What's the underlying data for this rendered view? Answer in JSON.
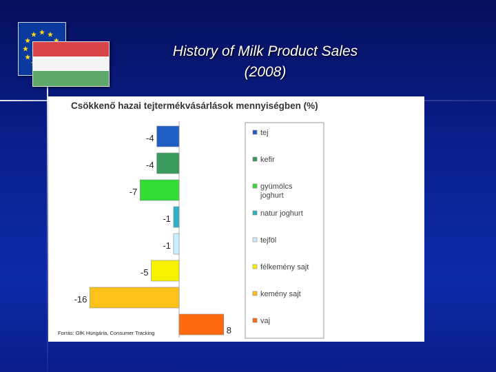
{
  "slide": {
    "title_line1": "History of Milk Product Sales",
    "title_line2": "(2008)"
  },
  "chart_data": {
    "type": "bar",
    "orientation": "horizontal",
    "title": "Csökkenő hazai tejtermékvásárlások mennyiségben (%)",
    "source": "Forrás: GfK Hungária, Consumer Tracking",
    "categories": [
      "tej",
      "kefir",
      "gyümölcs joghurt",
      "natur joghurt",
      "tejföl",
      "félkemény sajt",
      "kemény sajt",
      "vaj"
    ],
    "legend_lines": [
      [
        "tej"
      ],
      [
        "kefir"
      ],
      [
        "gyümölcs",
        "joghurt"
      ],
      [
        "natur joghurt"
      ],
      [
        "tejföl"
      ],
      [
        "félkemény sajt"
      ],
      [
        "kemény sajt"
      ],
      [
        "vaj"
      ]
    ],
    "values": [
      -4,
      -4,
      -7,
      -1,
      -1,
      -5,
      -16,
      8
    ],
    "value_labels": [
      "-4",
      "-4",
      "-7",
      "-1",
      "-1",
      "-5",
      "-16",
      "8"
    ],
    "colors": [
      "#1f5fc4",
      "#3a9a5e",
      "#33dd33",
      "#2fb3c2",
      "#c9efff",
      "#f6f200",
      "#ffc21a",
      "#ff6a10"
    ],
    "legend_placement": "right",
    "grid": false
  },
  "icons": {
    "flag_eu": "eu-flag-icon",
    "flag_hu": "hungary-flag-icon"
  }
}
